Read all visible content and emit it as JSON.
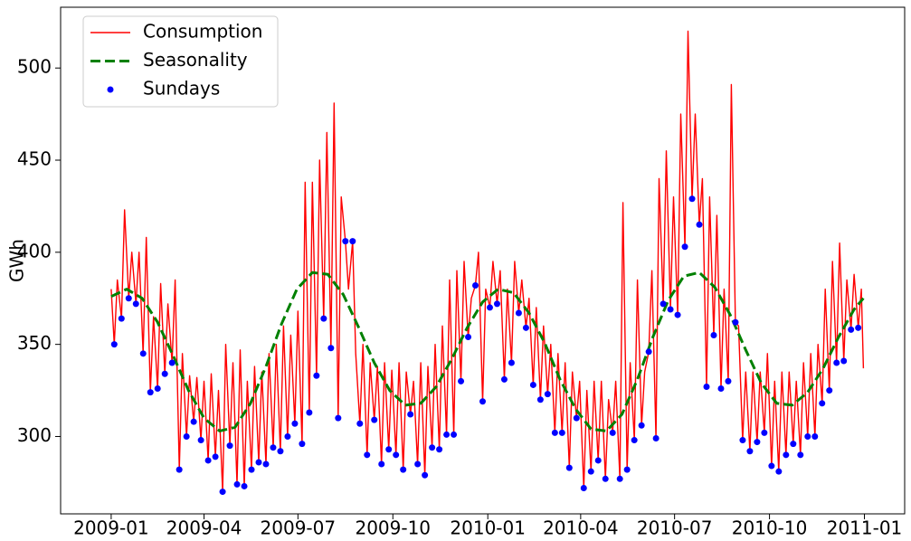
{
  "chart_data": {
    "type": "line",
    "ylabel": "GWh",
    "legend": "upper left",
    "xlim": [
      -49,
      769
    ],
    "ylim": [
      258,
      533
    ],
    "xticks": [
      {
        "value": 0,
        "label": "2009-01"
      },
      {
        "value": 90,
        "label": "2009-04"
      },
      {
        "value": 181,
        "label": "2009-07"
      },
      {
        "value": 273,
        "label": "2009-10"
      },
      {
        "value": 365,
        "label": "2010-01"
      },
      {
        "value": 455,
        "label": "2010-04"
      },
      {
        "value": 546,
        "label": "2010-07"
      },
      {
        "value": 638,
        "label": "2010-10"
      },
      {
        "value": 730,
        "label": "2011-01"
      }
    ],
    "yticks": [
      300,
      350,
      400,
      450,
      500
    ],
    "series": [
      {
        "name": "Consumption",
        "color": "#ff0000",
        "style": "line",
        "x": [
          0,
          3,
          6,
          10,
          13,
          17,
          20,
          24,
          27,
          31,
          34,
          38,
          41,
          45,
          48,
          52,
          55,
          59,
          62,
          66,
          69,
          73,
          76,
          80,
          83,
          87,
          90,
          94,
          97,
          101,
          104,
          108,
          111,
          115,
          118,
          122,
          125,
          129,
          132,
          136,
          139,
          143,
          146,
          150,
          153,
          157,
          160,
          164,
          167,
          171,
          174,
          178,
          181,
          185,
          188,
          192,
          195,
          199,
          202,
          206,
          209,
          213,
          216,
          220,
          223,
          227,
          230,
          234,
          237,
          241,
          244,
          248,
          251,
          255,
          258,
          262,
          265,
          269,
          272,
          276,
          279,
          283,
          286,
          290,
          293,
          297,
          300,
          304,
          307,
          311,
          314,
          318,
          321,
          325,
          328,
          332,
          335,
          339,
          342,
          346,
          349,
          353,
          356,
          360,
          363,
          367,
          370,
          374,
          377,
          381,
          384,
          388,
          391,
          395,
          398,
          402,
          405,
          409,
          412,
          416,
          419,
          423,
          426,
          430,
          433,
          437,
          440,
          444,
          447,
          451,
          454,
          458,
          461,
          465,
          468,
          472,
          475,
          479,
          482,
          486,
          489,
          493,
          496,
          500,
          503,
          507,
          510,
          514,
          517,
          521,
          524,
          528,
          531,
          535,
          538,
          542,
          545,
          549,
          552,
          556,
          559,
          563,
          566,
          570,
          573,
          577,
          580,
          584,
          587,
          591,
          594,
          598,
          601,
          605,
          608,
          612,
          615,
          619,
          622,
          626,
          629,
          633,
          636,
          640,
          643,
          647,
          650,
          654,
          657,
          661,
          664,
          668,
          671,
          675,
          678,
          682,
          685,
          689,
          692,
          696,
          699,
          703,
          706,
          710,
          713,
          717,
          720,
          724,
          727,
          729
        ],
        "values": [
          380,
          350,
          385,
          364,
          423,
          375,
          400,
          372,
          400,
          345,
          408,
          324,
          365,
          326,
          383,
          334,
          372,
          340,
          385,
          282,
          345,
          300,
          333,
          308,
          332,
          298,
          330,
          287,
          334,
          289,
          325,
          270,
          350,
          295,
          340,
          274,
          347,
          273,
          330,
          282,
          338,
          286,
          335,
          285,
          345,
          294,
          350,
          292,
          360,
          300,
          355,
          307,
          368,
          296,
          438,
          313,
          438,
          333,
          450,
          364,
          465,
          348,
          481,
          310,
          430,
          406,
          380,
          406,
          345,
          307,
          350,
          290,
          340,
          309,
          338,
          285,
          340,
          293,
          336,
          290,
          340,
          282,
          335,
          312,
          330,
          285,
          340,
          279,
          338,
          294,
          350,
          293,
          360,
          301,
          385,
          301,
          390,
          330,
          395,
          354,
          375,
          382,
          400,
          319,
          380,
          370,
          395,
          372,
          390,
          331,
          380,
          340,
          395,
          367,
          385,
          359,
          375,
          328,
          370,
          320,
          360,
          323,
          350,
          302,
          345,
          302,
          340,
          283,
          335,
          310,
          330,
          272,
          325,
          281,
          330,
          287,
          330,
          277,
          320,
          302,
          330,
          277,
          427,
          282,
          340,
          298,
          385,
          306,
          335,
          346,
          390,
          299,
          440,
          372,
          455,
          369,
          430,
          366,
          475,
          403,
          520,
          429,
          475,
          415,
          440,
          327,
          430,
          355,
          420,
          326,
          380,
          330,
          491,
          362,
          360,
          298,
          335,
          292,
          335,
          297,
          335,
          302,
          345,
          284,
          330,
          281,
          335,
          290,
          335,
          296,
          330,
          290,
          340,
          300,
          345,
          300,
          350,
          318,
          380,
          325,
          395,
          340,
          405,
          341,
          385,
          358,
          388,
          359,
          380,
          337
        ]
      },
      {
        "name": "Seasonality",
        "color": "#008000",
        "style": "dashed",
        "x": [
          0,
          15,
          30,
          45,
          60,
          75,
          90,
          105,
          120,
          135,
          150,
          165,
          180,
          195,
          210,
          225,
          240,
          255,
          270,
          285,
          300,
          315,
          330,
          345,
          360,
          375,
          390,
          405,
          420,
          435,
          450,
          465,
          480,
          495,
          510,
          525,
          540,
          555,
          570,
          585,
          600,
          615,
          630,
          645,
          660,
          675,
          690,
          705,
          720,
          729
        ],
        "values": [
          376,
          380,
          375,
          362,
          344,
          325,
          310,
          303,
          305,
          318,
          338,
          361,
          380,
          389,
          388,
          377,
          359,
          340,
          325,
          317,
          318,
          327,
          342,
          359,
          373,
          380,
          378,
          367,
          351,
          331,
          315,
          304,
          303,
          312,
          331,
          354,
          374,
          387,
          389,
          381,
          366,
          347,
          329,
          318,
          317,
          324,
          337,
          354,
          369,
          375
        ]
      },
      {
        "name": "Sundays",
        "color": "#0000ff",
        "style": "marker",
        "x": [
          3,
          10,
          17,
          24,
          31,
          38,
          45,
          52,
          59,
          66,
          73,
          80,
          87,
          94,
          101,
          108,
          115,
          122,
          129,
          136,
          143,
          150,
          157,
          164,
          171,
          178,
          185,
          192,
          199,
          206,
          213,
          220,
          227,
          234,
          241,
          248,
          255,
          262,
          269,
          276,
          283,
          290,
          297,
          304,
          311,
          318,
          325,
          332,
          339,
          346,
          353,
          360,
          367,
          374,
          381,
          388,
          395,
          402,
          409,
          416,
          423,
          430,
          437,
          444,
          451,
          458,
          465,
          472,
          479,
          486,
          493,
          500,
          507,
          514,
          521,
          528,
          535,
          542,
          549,
          556,
          563,
          570,
          577,
          584,
          591,
          598,
          605,
          612,
          619,
          626,
          633,
          640,
          647,
          654,
          661,
          668,
          675,
          682,
          689,
          696,
          703,
          710,
          717,
          724
        ],
        "values": [
          350,
          364,
          375,
          372,
          345,
          324,
          326,
          334,
          340,
          282,
          300,
          308,
          298,
          287,
          289,
          270,
          295,
          274,
          273,
          282,
          286,
          285,
          294,
          292,
          300,
          307,
          296,
          313,
          333,
          364,
          348,
          310,
          406,
          406,
          307,
          290,
          309,
          285,
          293,
          290,
          282,
          312,
          285,
          279,
          294,
          293,
          301,
          301,
          330,
          354,
          382,
          319,
          370,
          372,
          331,
          340,
          367,
          359,
          328,
          320,
          323,
          302,
          302,
          283,
          310,
          272,
          281,
          287,
          277,
          302,
          277,
          282,
          298,
          306,
          346,
          299,
          372,
          369,
          366,
          403,
          429,
          415,
          327,
          355,
          326,
          330,
          362,
          298,
          292,
          297,
          302,
          284,
          281,
          290,
          296,
          290,
          300,
          300,
          318,
          325,
          340,
          341,
          358,
          359
        ]
      }
    ]
  }
}
